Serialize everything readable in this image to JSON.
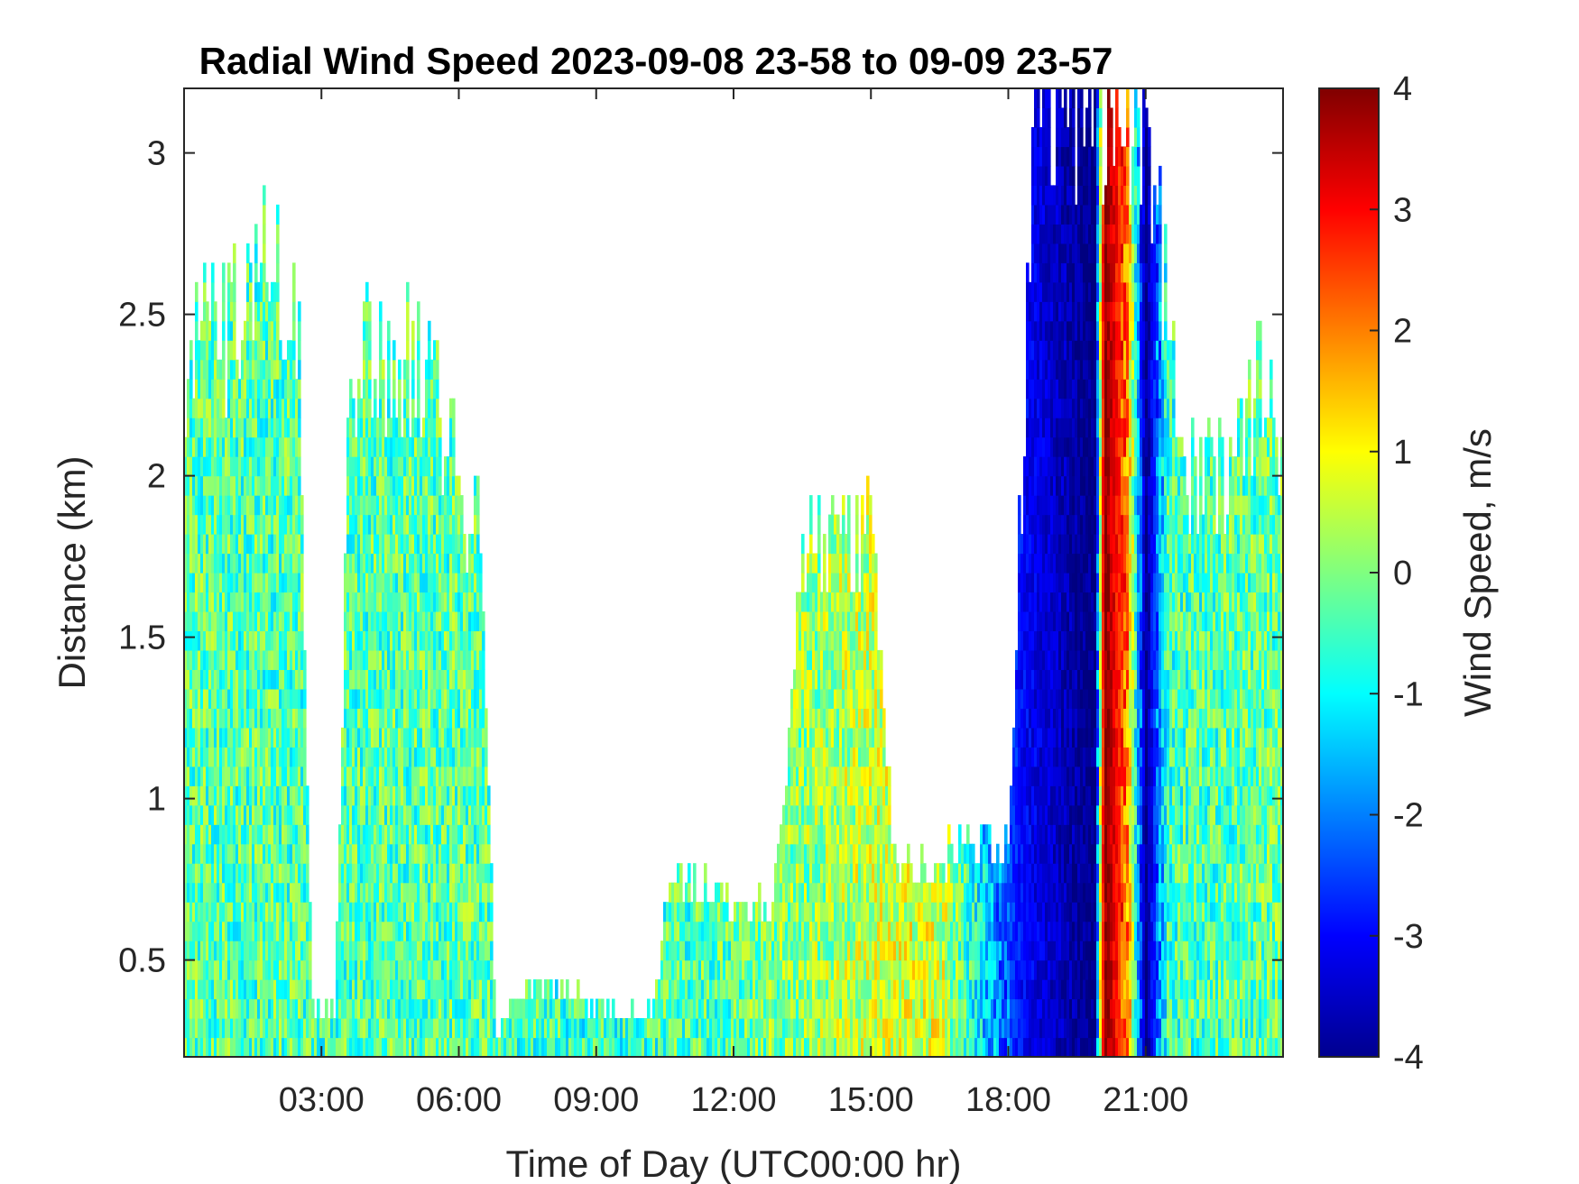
{
  "chart_data": {
    "type": "heatmap",
    "title": "Radial Wind Speed 2023-09-08 23-58 to 09-09 23-57",
    "xlabel": "Time of Day (UTC00:00 hr)",
    "ylabel": "Distance (km)",
    "colorbar_label": "Wind Speed, m/s",
    "xlim": [
      0,
      24
    ],
    "ylim": [
      0.2,
      3.2
    ],
    "clim": [
      -4,
      4
    ],
    "colormap": "jet",
    "x_ticks": [
      3,
      6,
      9,
      12,
      15,
      18,
      21
    ],
    "x_tick_labels": [
      "03:00",
      "06:00",
      "09:00",
      "12:00",
      "15:00",
      "18:00",
      "21:00"
    ],
    "y_ticks": [
      0.5,
      1,
      1.5,
      2,
      2.5,
      3
    ],
    "y_tick_labels": [
      "0.5",
      "1",
      "1.5",
      "2",
      "2.5",
      "3"
    ],
    "colorbar_ticks": [
      -4,
      -3,
      -2,
      -1,
      0,
      1,
      2,
      3,
      4
    ],
    "colorbar_tick_labels": [
      "-4",
      "-3",
      "-2",
      "-1",
      "0",
      "1",
      "2",
      "3",
      "4"
    ],
    "coverage_ceiling_km": [
      [
        0.0,
        2.4
      ],
      [
        0.5,
        2.45
      ],
      [
        1.0,
        2.5
      ],
      [
        1.5,
        2.65
      ],
      [
        1.8,
        2.8
      ],
      [
        2.2,
        2.6
      ],
      [
        2.5,
        2.45
      ],
      [
        2.8,
        0.35
      ],
      [
        3.3,
        0.35
      ],
      [
        3.6,
        2.3
      ],
      [
        4.2,
        2.45
      ],
      [
        4.6,
        2.2
      ],
      [
        5.0,
        2.45
      ],
      [
        5.5,
        2.3
      ],
      [
        6.0,
        2.0
      ],
      [
        6.5,
        1.8
      ],
      [
        6.8,
        0.3
      ],
      [
        7.5,
        0.42
      ],
      [
        8.5,
        0.42
      ],
      [
        9.0,
        0.35
      ],
      [
        10.3,
        0.35
      ],
      [
        10.5,
        0.75
      ],
      [
        11.5,
        0.75
      ],
      [
        12.2,
        0.65
      ],
      [
        12.9,
        0.7
      ],
      [
        13.5,
        1.8
      ],
      [
        14.5,
        1.8
      ],
      [
        15.0,
        1.9
      ],
      [
        15.5,
        0.8
      ],
      [
        17.0,
        0.85
      ],
      [
        18.0,
        0.9
      ],
      [
        18.6,
        3.2
      ],
      [
        19.5,
        3.2
      ],
      [
        20.0,
        3.2
      ],
      [
        21.0,
        3.2
      ],
      [
        22.0,
        2.0
      ],
      [
        22.8,
        2.0
      ],
      [
        23.5,
        2.3
      ],
      [
        24.0,
        2.0
      ]
    ],
    "speed_profile_ms": [
      [
        0.0,
        -0.3
      ],
      [
        3.0,
        -0.4
      ],
      [
        6.0,
        -0.3
      ],
      [
        9.0,
        -0.6
      ],
      [
        12.0,
        -0.3
      ],
      [
        15.0,
        0.5
      ],
      [
        16.5,
        0.7
      ],
      [
        18.3,
        -3.0
      ],
      [
        19.1,
        -3.5
      ],
      [
        19.9,
        -4.0
      ],
      [
        20.1,
        4.0
      ],
      [
        20.6,
        2.0
      ],
      [
        21.0,
        -4.0
      ],
      [
        21.5,
        -0.5
      ],
      [
        24.0,
        -0.2
      ]
    ]
  }
}
